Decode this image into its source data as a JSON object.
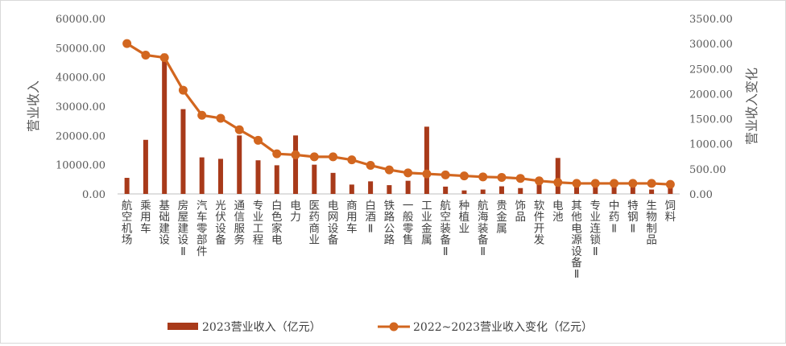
{
  "chart_data": {
    "type": "bar",
    "categories": [
      "航空机场",
      "乘用车",
      "基础建设",
      "房屋建设Ⅱ",
      "汽车零部件",
      "光伏设备",
      "通信服务",
      "专业工程",
      "白色家电",
      "电力",
      "医药商业",
      "电网设备",
      "商用车",
      "白酒Ⅱ",
      "铁路公路",
      "一般零售",
      "工业金属",
      "航空装备Ⅱ",
      "种植业",
      "航海装备Ⅱ",
      "贵金属",
      "饰品",
      "软件开发",
      "电池",
      "其他电源设备Ⅱ",
      "专业连锁Ⅱ",
      "中药Ⅱ",
      "特钢Ⅱ",
      "生物制品",
      "饲料"
    ],
    "series": [
      {
        "name": "2023营业收入（亿元）",
        "chart": "bar",
        "axis": "left",
        "color": "#a83a1a",
        "values": [
          5500,
          18500,
          48000,
          29000,
          12500,
          12000,
          20000,
          11500,
          9800,
          20000,
          10000,
          7200,
          3200,
          4300,
          3000,
          4500,
          23000,
          2500,
          1200,
          1500,
          2600,
          2000,
          4500,
          12300,
          3500,
          2500,
          3000,
          3000,
          1500,
          3500
        ]
      },
      {
        "name": "2022~2023营业收入变化（亿元）",
        "chart": "line",
        "axis": "right",
        "color": "#d2661f",
        "values": [
          3000,
          2770,
          2720,
          2070,
          1570,
          1510,
          1280,
          1070,
          800,
          780,
          740,
          740,
          680,
          570,
          480,
          420,
          400,
          380,
          360,
          340,
          330,
          310,
          260,
          230,
          210,
          210,
          210,
          210,
          210,
          190
        ]
      }
    ],
    "y_left": {
      "min": 0,
      "max": 60000,
      "step": 10000,
      "tick_labels": [
        "0.00",
        "10000.00",
        "20000.00",
        "30000.00",
        "40000.00",
        "50000.00",
        "60000.00"
      ],
      "label": "营业收入"
    },
    "y_right": {
      "min": 0,
      "max": 3500,
      "step": 500,
      "tick_labels": [
        "0.00",
        "500.00",
        "1000.00",
        "1500.00",
        "2000.00",
        "2500.00",
        "3000.00",
        "3500.00"
      ],
      "label": "营业收入变化"
    },
    "grid": false,
    "legend": "bottom"
  }
}
